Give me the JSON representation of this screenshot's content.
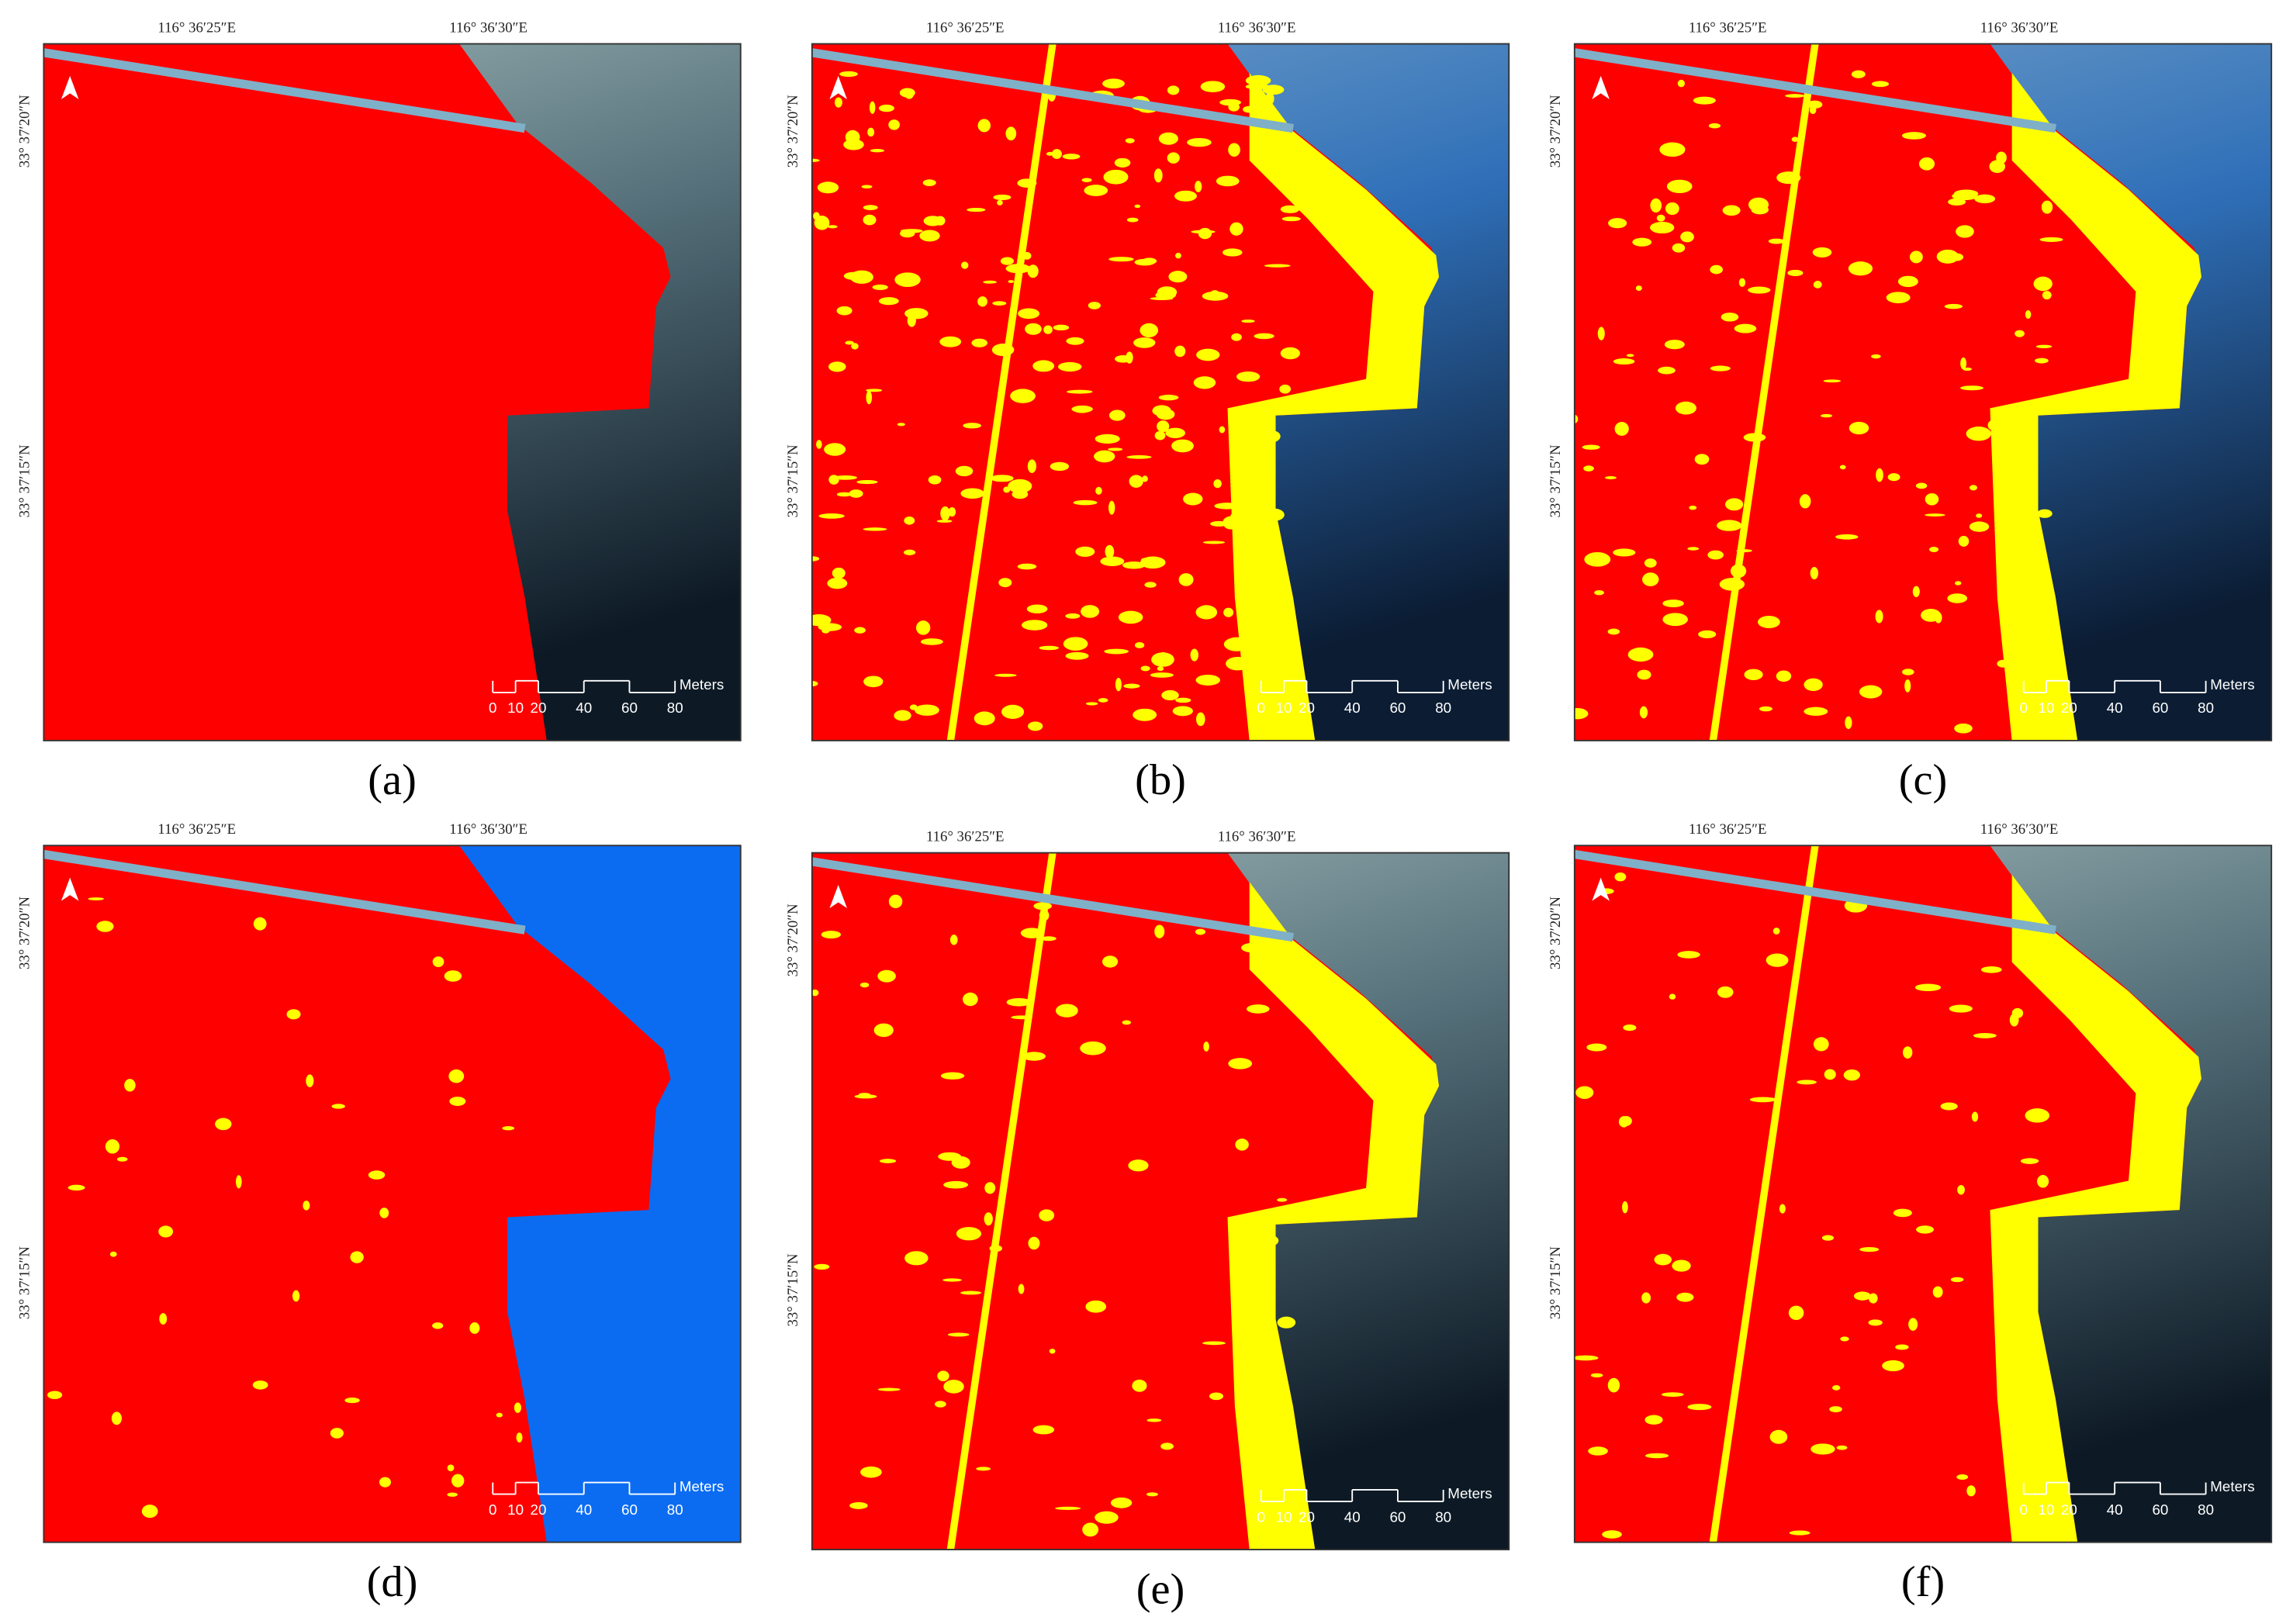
{
  "panels": [
    {
      "label": "(a)",
      "style": "a"
    },
    {
      "label": "(b)",
      "style": "b"
    },
    {
      "label": "(c)",
      "style": "c"
    },
    {
      "label": "(d)",
      "style": "d"
    },
    {
      "label": "(e)",
      "style": "e"
    },
    {
      "label": "(f)",
      "style": "f"
    }
  ],
  "lon_labels": [
    "116° 36′25″E",
    "116° 36′30″E"
  ],
  "lat_labels": [
    "33° 37′20″N",
    "33° 37′15″N"
  ],
  "scale_bar": {
    "ticks": [
      0,
      10,
      20,
      40,
      60,
      80
    ],
    "unit": "Meters"
  }
}
